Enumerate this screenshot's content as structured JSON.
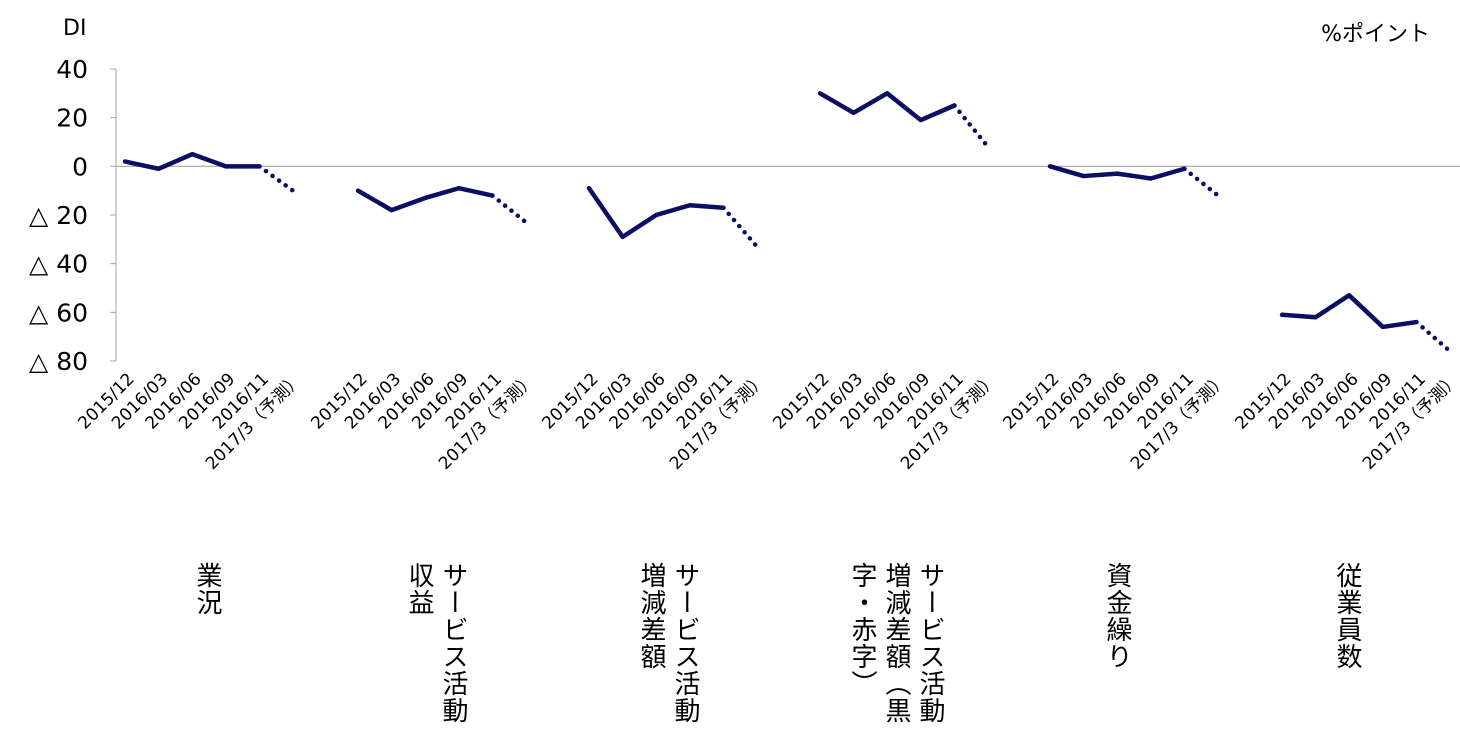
{
  "chart_data": {
    "type": "line",
    "y_unit_left": "DI",
    "y_unit_right": "%ポイント",
    "ylim": [
      -80,
      40
    ],
    "y_ticks": [
      {
        "value": 40,
        "label": "40"
      },
      {
        "value": 20,
        "label": "20"
      },
      {
        "value": 0,
        "label": "0"
      },
      {
        "value": -20,
        "label": "△ 20"
      },
      {
        "value": -40,
        "label": "△ 40"
      },
      {
        "value": -60,
        "label": "△ 60"
      },
      {
        "value": -80,
        "label": "△ 80"
      }
    ],
    "x_labels": [
      "2015/12",
      "2016/03",
      "2016/06",
      "2016/09",
      "2016/11",
      "2017/3（予測）"
    ],
    "line_color": "#0a0f63",
    "forecast_style": "dotted",
    "series": [
      {
        "name": "業況",
        "values": [
          2,
          -1,
          5,
          0,
          0,
          -10
        ]
      },
      {
        "name": "サービス活動収益",
        "values": [
          -10,
          -18,
          -13,
          -9,
          -12,
          -23
        ]
      },
      {
        "name": "サービス活動増減差額",
        "values": [
          -9,
          -29,
          -20,
          -16,
          -17,
          -33
        ]
      },
      {
        "name": "サービス活動増減差額（黒字・赤字）",
        "values": [
          30,
          22,
          30,
          19,
          25,
          8
        ]
      },
      {
        "name": "資金繰り",
        "values": [
          0,
          -4,
          -3,
          -5,
          -1,
          -12
        ]
      },
      {
        "name": "従業員数",
        "values": [
          -61,
          -62,
          -53,
          -66,
          -64,
          -76
        ]
      }
    ]
  }
}
